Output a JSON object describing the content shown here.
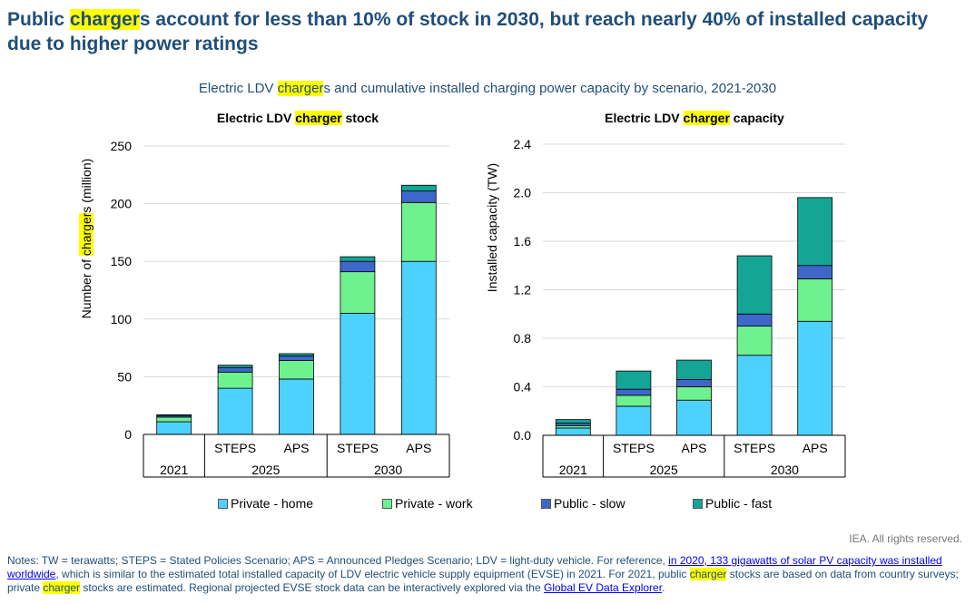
{
  "header": {
    "title_parts": [
      "Public ",
      "charger",
      "s account for less than 10% of stock in 2030, but reach nearly 40% of installed capacity due to higher power ratings"
    ],
    "subtitle_parts": [
      "Electric LDV ",
      "charger",
      "s and cumulative installed charging power capacity by scenario, 2021-2030"
    ]
  },
  "colors": {
    "private_home": "#4dd2ff",
    "private_work": "#6ef28f",
    "public_slow": "#3d67c9",
    "public_fast": "#14a596",
    "title": "#1f4e79",
    "highlight": "#ffff00"
  },
  "chart_data": [
    {
      "type": "bar",
      "stacked": true,
      "title_parts": [
        "Electric LDV ",
        "charger",
        " stock"
      ],
      "ylabel_parts": [
        "Number of ",
        "charger",
        "s (million)"
      ],
      "ylim": [
        0,
        250
      ],
      "yticks": [
        0,
        50,
        100,
        150,
        200,
        250
      ],
      "categories": [
        "2021",
        "STEPS",
        "APS",
        "STEPS",
        "APS"
      ],
      "groups": [
        {
          "label": "2021",
          "span": 1
        },
        {
          "label": "2025",
          "span": 2
        },
        {
          "label": "2030",
          "span": 2
        }
      ],
      "series": [
        {
          "name": "Private - home",
          "values": [
            11,
            40,
            48,
            105,
            150
          ]
        },
        {
          "name": "Private - work",
          "values": [
            4,
            14,
            16,
            36,
            51
          ]
        },
        {
          "name": "Public - slow",
          "values": [
            1.5,
            4,
            4,
            9,
            10
          ]
        },
        {
          "name": "Public - fast",
          "values": [
            0.5,
            2,
            2,
            4,
            5
          ]
        }
      ]
    },
    {
      "type": "bar",
      "stacked": true,
      "title_parts": [
        "Electric LDV ",
        "charger",
        " capacity"
      ],
      "ylabel_parts": [
        "Installed capacity (TW)"
      ],
      "ylim": [
        0,
        2.4
      ],
      "yticks": [
        "0.0",
        "0.4",
        "0.8",
        "1.2",
        "1.6",
        "2.0",
        "2.4"
      ],
      "categories": [
        "2021",
        "STEPS",
        "APS",
        "STEPS",
        "APS"
      ],
      "groups": [
        {
          "label": "2021",
          "span": 1
        },
        {
          "label": "2025",
          "span": 2
        },
        {
          "label": "2030",
          "span": 2
        }
      ],
      "series": [
        {
          "name": "Private - home",
          "values": [
            0.06,
            0.24,
            0.29,
            0.66,
            0.94
          ]
        },
        {
          "name": "Private - work",
          "values": [
            0.02,
            0.09,
            0.11,
            0.24,
            0.35
          ]
        },
        {
          "name": "Public - slow",
          "values": [
            0.02,
            0.05,
            0.06,
            0.1,
            0.11
          ]
        },
        {
          "name": "Public - fast",
          "values": [
            0.03,
            0.15,
            0.16,
            0.48,
            0.56
          ]
        }
      ]
    }
  ],
  "legend": [
    "Private - home",
    "Private - work",
    "Public - slow",
    "Public - fast"
  ],
  "footer": {
    "rights": "IEA. All rights reserved.",
    "notes_1": "Notes: TW = terawatts; STEPS = Stated Policies Scenario; APS = Announced Pledges Scenario; LDV = light-duty vehicle. For reference, ",
    "notes_link_1": "in 2020, 133 gigawatts of solar PV capacity was installed worldwide",
    "notes_2": ", which is similar to the estimated total installed capacity of LDV electric vehicle supply equipment (EVSE) in 2021. For 2021, public ",
    "notes_hl_1": "charger",
    "notes_3": " stocks are based on data from country surveys; private ",
    "notes_hl_2": "charger",
    "notes_4": " stocks are estimated. Regional projected EVSE stock data can be interactively explored via the ",
    "notes_link_2": "Global EV Data Explorer",
    "notes_5": "."
  }
}
